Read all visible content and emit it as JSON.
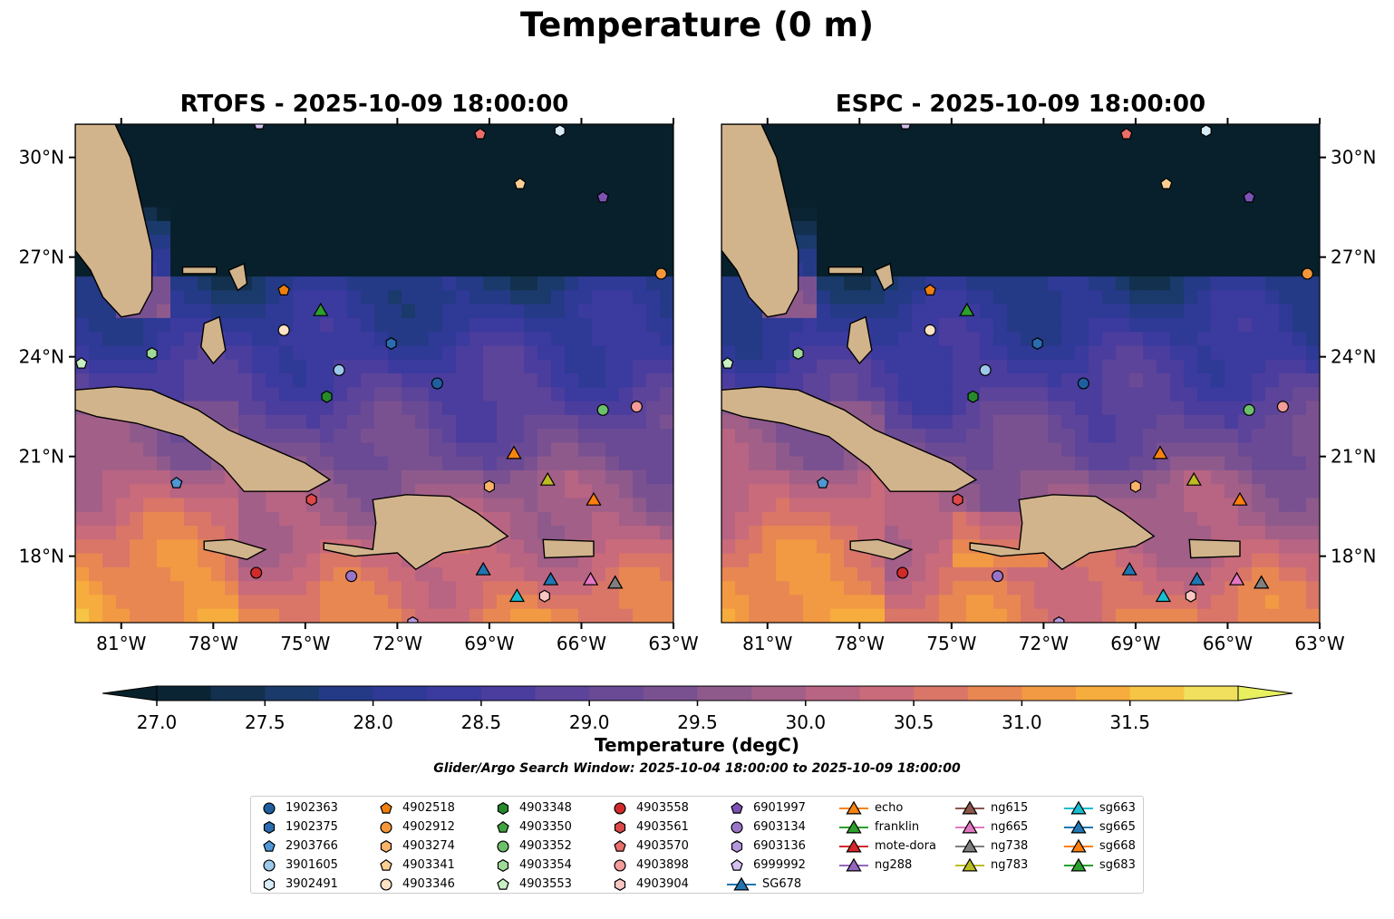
{
  "figure_title": "Temperature (0 m)",
  "panels": [
    {
      "id": "rtofs",
      "title": "RTOFS - 2025-10-09 18:00:00"
    },
    {
      "id": "espc",
      "title": "ESPC - 2025-10-09 18:00:00"
    }
  ],
  "axes": {
    "lon_ticks": [
      "81°W",
      "78°W",
      "75°W",
      "72°W",
      "69°W",
      "66°W",
      "63°W"
    ],
    "lon_values": [
      -81,
      -78,
      -75,
      -72,
      -69,
      -66,
      -63
    ],
    "lat_ticks": [
      "30°N",
      "27°N",
      "24°N",
      "21°N",
      "18°N"
    ],
    "lat_values": [
      30,
      27,
      24,
      21,
      18
    ],
    "lon_range": [
      -82.5,
      -63
    ],
    "lat_range": [
      16,
      31
    ]
  },
  "colorbar": {
    "label": "Temperature (degC)",
    "ticks": [
      "27.0",
      "27.5",
      "28.0",
      "28.5",
      "29.0",
      "29.5",
      "30.0",
      "30.5",
      "31.0",
      "31.5"
    ],
    "tick_values": [
      27.0,
      27.5,
      28.0,
      28.5,
      29.0,
      29.5,
      30.0,
      30.5,
      31.0,
      31.5
    ],
    "levels": [
      27.0,
      27.25,
      27.5,
      27.75,
      28.0,
      28.25,
      28.5,
      28.75,
      29.0,
      29.25,
      29.5,
      29.75,
      30.0,
      30.25,
      30.5,
      30.75,
      31.0,
      31.25,
      31.5,
      31.75
    ],
    "colors": [
      "#0b2433",
      "#13304f",
      "#1a3a6b",
      "#253a86",
      "#2f3996",
      "#3b3a9e",
      "#4a3d9e",
      "#5c449a",
      "#6a4a95",
      "#7a5190",
      "#8e5a8c",
      "#a25f88",
      "#b86483",
      "#c96b7a",
      "#d97668",
      "#e88752",
      "#f29a43",
      "#f7ad3e",
      "#f6c545",
      "#f0e05e"
    ],
    "under_color": "#08202b",
    "over_color": "#e8f060"
  },
  "search_window": "Glider/Argo Search Window: 2025-10-04 18:00:00 to 2025-10-09 18:00:00",
  "colors": {
    "land": "#d2b48c",
    "deep_cold": "#0b2433",
    "mid": "#4a3d9e",
    "warm": "#d97668",
    "hot": "#f7ad3e"
  },
  "legend_columns": [
    [
      {
        "label": "1902363",
        "marker": "circle",
        "color": "#1f5f9f"
      },
      {
        "label": "1902375",
        "marker": "hexagon",
        "color": "#2a6db0"
      },
      {
        "label": "2903766",
        "marker": "pentagon",
        "color": "#4f97d6"
      },
      {
        "label": "3901605",
        "marker": "circle",
        "color": "#9cc9ea"
      },
      {
        "label": "3902491",
        "marker": "hexagon",
        "color": "#d7ebf8"
      }
    ],
    [
      {
        "label": "4902518",
        "marker": "pentagon",
        "color": "#f07f0e"
      },
      {
        "label": "4902912",
        "marker": "circle",
        "color": "#f5963a"
      },
      {
        "label": "4903274",
        "marker": "hexagon",
        "color": "#f9b36a"
      },
      {
        "label": "4903341",
        "marker": "pentagon",
        "color": "#fbcf93"
      },
      {
        "label": "4903346",
        "marker": "circle",
        "color": "#fde3c4"
      }
    ],
    [
      {
        "label": "4903348",
        "marker": "hexagon",
        "color": "#278a2a"
      },
      {
        "label": "4903350",
        "marker": "pentagon",
        "color": "#3fa33e"
      },
      {
        "label": "4903352",
        "marker": "circle",
        "color": "#6cc06a"
      },
      {
        "label": "4903354",
        "marker": "hexagon",
        "color": "#9edb98"
      },
      {
        "label": "4903553",
        "marker": "pentagon",
        "color": "#c9f0c3"
      }
    ],
    [
      {
        "label": "4903558",
        "marker": "circle",
        "color": "#d12a2a"
      },
      {
        "label": "4903561",
        "marker": "hexagon",
        "color": "#de4848"
      },
      {
        "label": "4903570",
        "marker": "pentagon",
        "color": "#ea6d6a"
      },
      {
        "label": "4903898",
        "marker": "circle",
        "color": "#f39c98"
      },
      {
        "label": "4903904",
        "marker": "hexagon",
        "color": "#f9c6c3"
      }
    ],
    [
      {
        "label": "6901997",
        "marker": "pentagon",
        "color": "#7d52b5"
      },
      {
        "label": "6903134",
        "marker": "circle",
        "color": "#9a74c9"
      },
      {
        "label": "6903136",
        "marker": "hexagon",
        "color": "#b497dd"
      },
      {
        "label": "6999992",
        "marker": "pentagon",
        "color": "#d4c1f0"
      },
      {
        "label": "SG678",
        "marker": "triangle",
        "color": "#2075b0",
        "line": true
      }
    ],
    [
      {
        "label": "echo",
        "marker": "triangle",
        "color": "#f7830f",
        "line": true
      },
      {
        "label": "franklin",
        "marker": "triangle",
        "color": "#2ca02c",
        "line": true
      },
      {
        "label": "mote-dora",
        "marker": "triangle",
        "color": "#d62728",
        "line": true
      },
      {
        "label": "ng288",
        "marker": "triangle",
        "color": "#9467bd",
        "line": true
      }
    ],
    [
      {
        "label": "ng615",
        "marker": "triangle",
        "color": "#8c564b",
        "line": true
      },
      {
        "label": "ng665",
        "marker": "triangle",
        "color": "#e377c2",
        "line": true
      },
      {
        "label": "ng738",
        "marker": "triangle",
        "color": "#7f7f7f",
        "line": true
      },
      {
        "label": "ng783",
        "marker": "triangle",
        "color": "#bcbd22",
        "line": true
      }
    ],
    [
      {
        "label": "sg663",
        "marker": "triangle",
        "color": "#17becf",
        "line": true
      },
      {
        "label": "sg665",
        "marker": "triangle",
        "color": "#1f77b4",
        "line": true
      },
      {
        "label": "sg668",
        "marker": "triangle",
        "color": "#ff7f0e",
        "line": true
      },
      {
        "label": "sg683",
        "marker": "triangle",
        "color": "#2ca02c",
        "line": true
      }
    ]
  ],
  "platforms": [
    {
      "name": "1902363",
      "marker": "circle",
      "color": "#1f5f9f",
      "lon": -70.7,
      "lat": 23.2
    },
    {
      "name": "1902375",
      "marker": "hexagon",
      "color": "#2a6db0",
      "lon": -72.2,
      "lat": 24.4
    },
    {
      "name": "2903766",
      "marker": "pentagon",
      "color": "#4f97d6",
      "lon": -79.2,
      "lat": 20.2
    },
    {
      "name": "3901605",
      "marker": "circle",
      "color": "#9cc9ea",
      "lon": -73.9,
      "lat": 23.6
    },
    {
      "name": "3902491",
      "marker": "hexagon",
      "color": "#d7ebf8",
      "lon": -66.7,
      "lat": 30.8
    },
    {
      "name": "4902518",
      "marker": "pentagon",
      "color": "#f07f0e",
      "lon": -75.7,
      "lat": 26.0
    },
    {
      "name": "4902912",
      "marker": "circle",
      "color": "#f5963a",
      "lon": -63.4,
      "lat": 26.5
    },
    {
      "name": "4903274",
      "marker": "hexagon",
      "color": "#f9b36a",
      "lon": -69.0,
      "lat": 20.1
    },
    {
      "name": "4903341",
      "marker": "pentagon",
      "color": "#fbcf93",
      "lon": -68.0,
      "lat": 29.2
    },
    {
      "name": "4903346",
      "marker": "circle",
      "color": "#fde3c4",
      "lon": -75.7,
      "lat": 24.8
    },
    {
      "name": "4903348",
      "marker": "hexagon",
      "color": "#278a2a",
      "lon": -74.3,
      "lat": 22.8
    },
    {
      "name": "4903352",
      "marker": "circle",
      "color": "#6cc06a",
      "lon": -65.3,
      "lat": 22.4
    },
    {
      "name": "4903354",
      "marker": "hexagon",
      "color": "#9edb98",
      "lon": -80.0,
      "lat": 24.1
    },
    {
      "name": "4903553",
      "marker": "pentagon",
      "color": "#c9f0c3",
      "lon": -82.3,
      "lat": 23.8
    },
    {
      "name": "4903558",
      "marker": "circle",
      "color": "#d12a2a",
      "lon": -76.6,
      "lat": 17.5
    },
    {
      "name": "4903561",
      "marker": "hexagon",
      "color": "#de4848",
      "lon": -74.8,
      "lat": 19.7
    },
    {
      "name": "4903570",
      "marker": "pentagon",
      "color": "#ea6d6a",
      "lon": -69.3,
      "lat": 30.7
    },
    {
      "name": "4903898",
      "marker": "circle",
      "color": "#f39c98",
      "lon": -64.2,
      "lat": 22.5
    },
    {
      "name": "4903904",
      "marker": "hexagon",
      "color": "#f9c6c3",
      "lon": -67.2,
      "lat": 16.8
    },
    {
      "name": "6901997",
      "marker": "pentagon",
      "color": "#7d52b5",
      "lon": -65.3,
      "lat": 28.8
    },
    {
      "name": "6903134",
      "marker": "circle",
      "color": "#9a74c9",
      "lon": -73.5,
      "lat": 17.4
    },
    {
      "name": "6903136",
      "marker": "hexagon",
      "color": "#b497dd",
      "lon": -71.5,
      "lat": 16.0
    },
    {
      "name": "6999992",
      "marker": "pentagon",
      "color": "#d4c1f0",
      "lon": -76.5,
      "lat": 31.0
    },
    {
      "name": "SG678",
      "marker": "triangle",
      "color": "#2075b0",
      "lon": -69.2,
      "lat": 17.6
    },
    {
      "name": "echo",
      "marker": "triangle",
      "color": "#f7830f",
      "lon": -68.2,
      "lat": 21.1
    },
    {
      "name": "franklin",
      "marker": "triangle",
      "color": "#2ca02c",
      "lon": -74.5,
      "lat": 25.4
    },
    {
      "name": "ng615",
      "marker": "triangle",
      "color": "#8c564b",
      "lon": -64.9,
      "lat": 17.2
    },
    {
      "name": "ng665",
      "marker": "triangle",
      "color": "#e377c2",
      "lon": -65.7,
      "lat": 17.3
    },
    {
      "name": "ng738",
      "marker": "triangle",
      "color": "#7f7f7f",
      "lon": -64.9,
      "lat": 17.2
    },
    {
      "name": "ng783",
      "marker": "triangle",
      "color": "#bcbd22",
      "lon": -67.1,
      "lat": 20.3
    },
    {
      "name": "sg663",
      "marker": "triangle",
      "color": "#17becf",
      "lon": -68.1,
      "lat": 16.8
    },
    {
      "name": "sg665",
      "marker": "triangle",
      "color": "#1f77b4",
      "lon": -67.0,
      "lat": 17.3
    },
    {
      "name": "sg668",
      "marker": "triangle",
      "color": "#ff7f0e",
      "lon": -65.6,
      "lat": 19.7
    }
  ]
}
